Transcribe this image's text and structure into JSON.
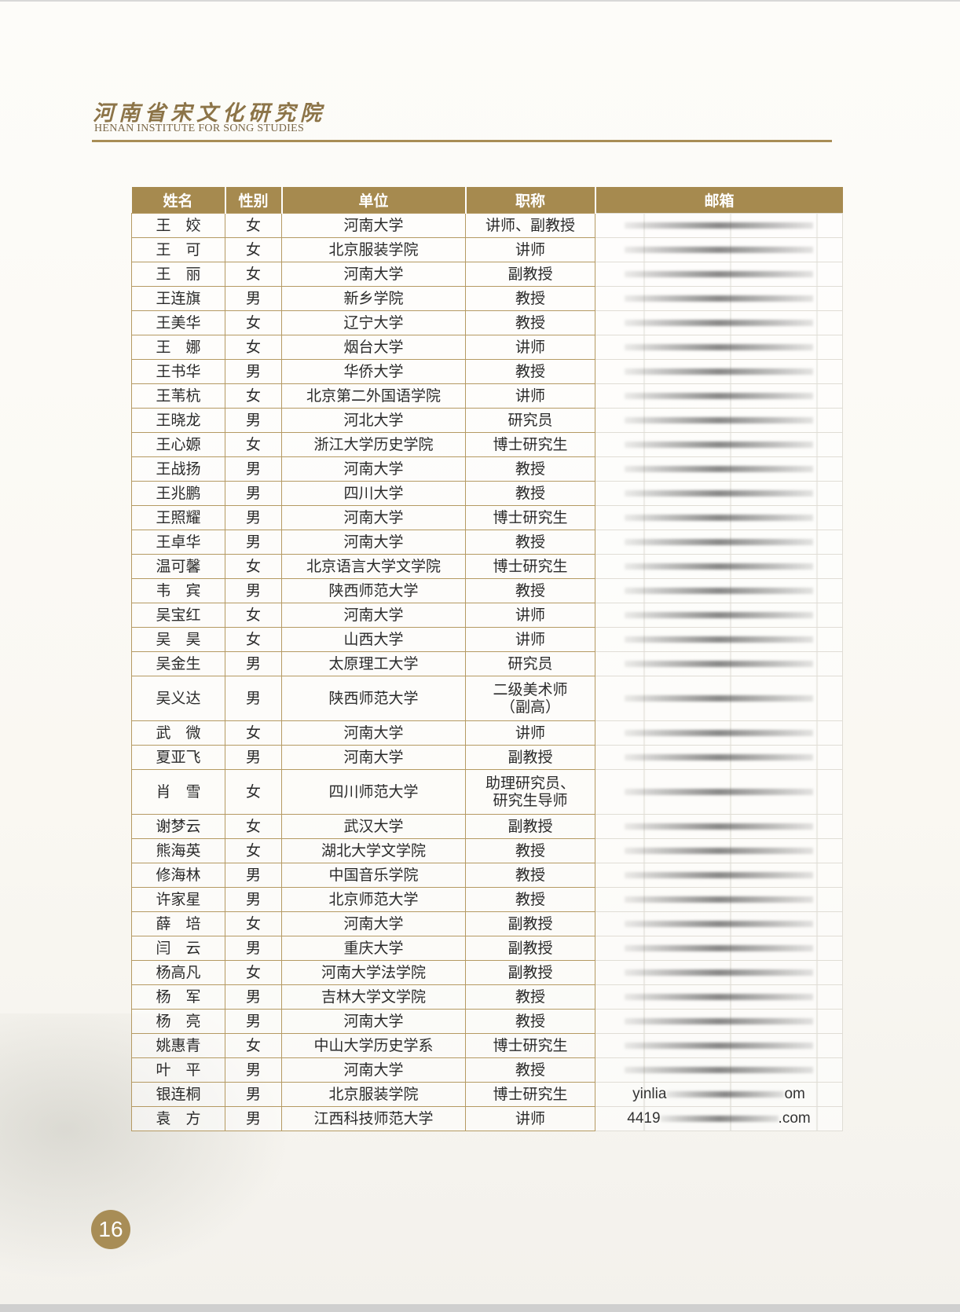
{
  "header": {
    "title_cn": "河南省宋文化研究院",
    "title_en": "HENAN INSTITUTE FOR SONG STUDIES"
  },
  "table": {
    "columns": [
      "姓名",
      "性别",
      "单位",
      "职称",
      "邮箱"
    ],
    "rows": [
      {
        "name": "王　姣",
        "gender": "女",
        "unit": "河南大学",
        "title": "讲师、副教授",
        "email": ""
      },
      {
        "name": "王　可",
        "gender": "女",
        "unit": "北京服装学院",
        "title": "讲师",
        "email": ""
      },
      {
        "name": "王　丽",
        "gender": "女",
        "unit": "河南大学",
        "title": "副教授",
        "email": ""
      },
      {
        "name": "王连旗",
        "gender": "男",
        "unit": "新乡学院",
        "title": "教授",
        "email": ""
      },
      {
        "name": "王美华",
        "gender": "女",
        "unit": "辽宁大学",
        "title": "教授",
        "email": ""
      },
      {
        "name": "王　娜",
        "gender": "女",
        "unit": "烟台大学",
        "title": "讲师",
        "email": ""
      },
      {
        "name": "王书华",
        "gender": "男",
        "unit": "华侨大学",
        "title": "教授",
        "email": ""
      },
      {
        "name": "王苇杭",
        "gender": "女",
        "unit": "北京第二外国语学院",
        "title": "讲师",
        "email": ""
      },
      {
        "name": "王晓龙",
        "gender": "男",
        "unit": "河北大学",
        "title": "研究员",
        "email": ""
      },
      {
        "name": "王心嫄",
        "gender": "女",
        "unit": "浙江大学历史学院",
        "title": "博士研究生",
        "email": ""
      },
      {
        "name": "王战扬",
        "gender": "男",
        "unit": "河南大学",
        "title": "教授",
        "email": ""
      },
      {
        "name": "王兆鹏",
        "gender": "男",
        "unit": "四川大学",
        "title": "教授",
        "email": ""
      },
      {
        "name": "王照耀",
        "gender": "男",
        "unit": "河南大学",
        "title": "博士研究生",
        "email": ""
      },
      {
        "name": "王卓华",
        "gender": "男",
        "unit": "河南大学",
        "title": "教授",
        "email": ""
      },
      {
        "name": "温可馨",
        "gender": "女",
        "unit": "北京语言大学文学院",
        "title": "博士研究生",
        "email": ""
      },
      {
        "name": "韦　宾",
        "gender": "男",
        "unit": "陕西师范大学",
        "title": "教授",
        "email": ""
      },
      {
        "name": "吴宝红",
        "gender": "女",
        "unit": "河南大学",
        "title": "讲师",
        "email": ""
      },
      {
        "name": "吴　昊",
        "gender": "女",
        "unit": "山西大学",
        "title": "讲师",
        "email": ""
      },
      {
        "name": "吴金生",
        "gender": "男",
        "unit": "太原理工大学",
        "title": "研究员",
        "email": ""
      },
      {
        "name": "吴义达",
        "gender": "男",
        "unit": "陕西师范大学",
        "title": "二级美术师",
        "title2": "（副高）",
        "email": ""
      },
      {
        "name": "武　微",
        "gender": "女",
        "unit": "河南大学",
        "title": "讲师",
        "email": ""
      },
      {
        "name": "夏亚飞",
        "gender": "男",
        "unit": "河南大学",
        "title": "副教授",
        "email": ""
      },
      {
        "name": "肖　雪",
        "gender": "女",
        "unit": "四川师范大学",
        "title": "助理研究员、",
        "title2": "研究生导师",
        "email": ""
      },
      {
        "name": "谢梦云",
        "gender": "女",
        "unit": "武汉大学",
        "title": "副教授",
        "email": ""
      },
      {
        "name": "熊海英",
        "gender": "女",
        "unit": "湖北大学文学院",
        "title": "教授",
        "email": ""
      },
      {
        "name": "修海林",
        "gender": "男",
        "unit": "中国音乐学院",
        "title": "教授",
        "email": ""
      },
      {
        "name": "许家星",
        "gender": "男",
        "unit": "北京师范大学",
        "title": "教授",
        "email": ""
      },
      {
        "name": "薛　培",
        "gender": "女",
        "unit": "河南大学",
        "title": "副教授",
        "email": ""
      },
      {
        "name": "闫　云",
        "gender": "男",
        "unit": "重庆大学",
        "title": "副教授",
        "email": ""
      },
      {
        "name": "杨高凡",
        "gender": "女",
        "unit": "河南大学法学院",
        "title": "副教授",
        "email": ""
      },
      {
        "name": "杨　军",
        "gender": "男",
        "unit": "吉林大学文学院",
        "title": "教授",
        "email": ""
      },
      {
        "name": "杨　亮",
        "gender": "男",
        "unit": "河南大学",
        "title": "教授",
        "email": ""
      },
      {
        "name": "姚惠青",
        "gender": "女",
        "unit": "中山大学历史学系",
        "title": "博士研究生",
        "email": ""
      },
      {
        "name": "叶　平",
        "gender": "男",
        "unit": "河南大学",
        "title": "教授",
        "email": ""
      },
      {
        "name": "银连桐",
        "gender": "男",
        "unit": "北京服装学院",
        "title": "博士研究生",
        "email": "yinlia",
        "email_end": "om"
      },
      {
        "name": "袁　方",
        "gender": "男",
        "unit": "江西科技师范大学",
        "title": "讲师",
        "email": "4419",
        "email_end": ".com"
      }
    ]
  },
  "footer": {
    "page_number": "16"
  },
  "colors": {
    "accent": "#a68a4f",
    "border": "#b59a63"
  }
}
